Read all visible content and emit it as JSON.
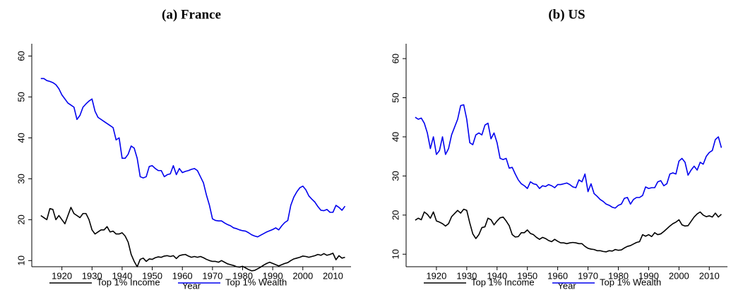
{
  "chart_data": [
    {
      "type": "line",
      "title": "(a) France",
      "xlabel": "Year",
      "x": [
        1913,
        1914,
        1915,
        1916,
        1917,
        1918,
        1919,
        1920,
        1921,
        1922,
        1923,
        1924,
        1925,
        1926,
        1927,
        1928,
        1929,
        1930,
        1931,
        1932,
        1933,
        1934,
        1935,
        1936,
        1937,
        1938,
        1939,
        1940,
        1941,
        1942,
        1943,
        1944,
        1945,
        1946,
        1947,
        1948,
        1949,
        1950,
        1951,
        1952,
        1953,
        1954,
        1955,
        1956,
        1957,
        1958,
        1959,
        1960,
        1961,
        1962,
        1963,
        1964,
        1965,
        1966,
        1967,
        1968,
        1969,
        1970,
        1971,
        1972,
        1973,
        1974,
        1975,
        1976,
        1977,
        1978,
        1979,
        1980,
        1981,
        1982,
        1983,
        1984,
        1985,
        1986,
        1987,
        1988,
        1989,
        1990,
        1991,
        1992,
        1993,
        1994,
        1995,
        1996,
        1997,
        1998,
        1999,
        2000,
        2001,
        2002,
        2003,
        2004,
        2005,
        2006,
        2007,
        2008,
        2009,
        2010,
        2011,
        2012,
        2013,
        2014
      ],
      "series": [
        {
          "name": "Top 1% Income",
          "color": "#000000",
          "values": [
            21,
            20.5,
            20,
            22.7,
            22.5,
            20,
            21,
            20,
            19,
            21,
            23,
            21.5,
            21,
            20.5,
            21.5,
            21.5,
            20,
            17.5,
            16.5,
            17,
            17.5,
            17.5,
            18.3,
            17,
            17.2,
            16.5,
            16.5,
            16.8,
            16,
            14.5,
            11.5,
            9.8,
            8.5,
            10.3,
            10.6,
            9.8,
            10.4,
            10.3,
            10.7,
            10.9,
            10.8,
            11.1,
            11.2,
            11,
            11.2,
            10.5,
            11.2,
            11.4,
            11.5,
            11.1,
            10.8,
            11,
            10.8,
            11,
            10.7,
            10.3,
            10,
            9.8,
            9.8,
            9.6,
            10,
            9.6,
            9.2,
            9,
            8.8,
            8.5,
            8.4,
            8.6,
            8.2,
            7.8,
            7.5,
            7.6,
            8,
            8.4,
            8.9,
            9.3,
            9.6,
            9.3,
            9,
            8.7,
            9,
            9.3,
            9.5,
            10,
            10.4,
            10.6,
            10.8,
            11.1,
            11,
            10.8,
            11,
            11.2,
            11.5,
            11.3,
            11.7,
            11.3,
            11.5,
            11.8,
            10.2,
            11.2,
            10.6,
            10.8
          ]
        },
        {
          "name": "Top 1% Wealth",
          "color": "#0000ee",
          "values": [
            54.5,
            54.5,
            54,
            53.8,
            53.5,
            53,
            52,
            50.5,
            49.5,
            48.5,
            48,
            47.5,
            44.5,
            45.5,
            47.5,
            48.3,
            49,
            49.5,
            46.5,
            45,
            44.5,
            44,
            43.5,
            43,
            42.5,
            39.5,
            40,
            35,
            35,
            36,
            38,
            37.5,
            35,
            30.5,
            30.2,
            30.5,
            33,
            33.2,
            32.5,
            32,
            32,
            30.5,
            31,
            31.2,
            33.2,
            31,
            32.5,
            31.5,
            31.8,
            32,
            32.3,
            32.5,
            32,
            30.5,
            29,
            26,
            23.5,
            20.2,
            19.8,
            19.7,
            19.7,
            19.2,
            18.8,
            18.5,
            18,
            17.8,
            17.5,
            17.3,
            17.2,
            16.8,
            16.3,
            16,
            15.8,
            16.2,
            16.6,
            17,
            17.3,
            17.6,
            18,
            17.5,
            18.5,
            19.3,
            19.8,
            23.5,
            25.5,
            26.8,
            27.8,
            28.2,
            27.3,
            25.8,
            25,
            24.3,
            23.2,
            22.3,
            22.2,
            22.5,
            21.8,
            21.8,
            23.5,
            23,
            22.3,
            23.3
          ]
        }
      ],
      "xlim": [
        1910,
        2016
      ],
      "ylim": [
        8.5,
        63
      ],
      "xticks": [
        1920,
        1930,
        1940,
        1950,
        1960,
        1970,
        1980,
        1990,
        2000,
        2010
      ],
      "yticks": [
        10,
        20,
        30,
        40,
        50,
        60
      ],
      "grid": false,
      "legend": "bottom"
    },
    {
      "type": "line",
      "title": "(b) US",
      "xlabel": "Year",
      "x": [
        1913,
        1914,
        1915,
        1916,
        1917,
        1918,
        1919,
        1920,
        1921,
        1922,
        1923,
        1924,
        1925,
        1926,
        1927,
        1928,
        1929,
        1930,
        1931,
        1932,
        1933,
        1934,
        1935,
        1936,
        1937,
        1938,
        1939,
        1940,
        1941,
        1942,
        1943,
        1944,
        1945,
        1946,
        1947,
        1948,
        1949,
        1950,
        1951,
        1952,
        1953,
        1954,
        1955,
        1956,
        1957,
        1958,
        1959,
        1960,
        1961,
        1962,
        1963,
        1964,
        1965,
        1966,
        1967,
        1968,
        1969,
        1970,
        1971,
        1972,
        1973,
        1974,
        1975,
        1976,
        1977,
        1978,
        1979,
        1980,
        1981,
        1982,
        1983,
        1984,
        1985,
        1986,
        1987,
        1988,
        1989,
        1990,
        1991,
        1992,
        1993,
        1994,
        1995,
        1996,
        1997,
        1998,
        1999,
        2000,
        2001,
        2002,
        2003,
        2004,
        2005,
        2006,
        2007,
        2008,
        2009,
        2010,
        2011,
        2012,
        2013,
        2014
      ],
      "series": [
        {
          "name": "Top 1% Income",
          "color": "#000000",
          "values": [
            18.7,
            19.2,
            18.8,
            20.8,
            20.2,
            19.2,
            20.8,
            18.5,
            18.2,
            17.8,
            17.2,
            17.8,
            19.6,
            20.4,
            21.2,
            20.5,
            21.5,
            21.2,
            18,
            15.2,
            14,
            15,
            16.8,
            17,
            19.2,
            18.8,
            17.5,
            18.5,
            19.3,
            19.5,
            18.5,
            17.3,
            15,
            14.4,
            14.5,
            15.5,
            15.5,
            16.2,
            15.3,
            15,
            14.3,
            13.8,
            14.3,
            14,
            13.5,
            13.2,
            13.8,
            13.3,
            12.9,
            12.9,
            12.7,
            12.9,
            13,
            12.9,
            12.7,
            12.7,
            12,
            11.5,
            11.3,
            11.2,
            10.9,
            10.9,
            10.7,
            10.6,
            10.9,
            10.8,
            11.2,
            11,
            11.1,
            11.6,
            12,
            12.2,
            12.6,
            13,
            13.2,
            15,
            14.6,
            15,
            14.5,
            15.5,
            15,
            15.2,
            15.8,
            16.5,
            17.2,
            17.8,
            18.2,
            18.8,
            17.5,
            17.2,
            17.3,
            18.4,
            19.5,
            20.3,
            20.8,
            20,
            19.6,
            19.8,
            19.5,
            20.5,
            19.5,
            20.2
          ]
        },
        {
          "name": "Top 1% Wealth",
          "color": "#0000ee",
          "values": [
            45,
            44.5,
            44.8,
            43.5,
            41,
            37,
            40,
            35.5,
            36.5,
            40,
            35.5,
            37,
            40.5,
            42.5,
            44.5,
            48,
            48.2,
            44.5,
            38.5,
            38,
            40.5,
            41,
            40.5,
            43,
            43.5,
            39.5,
            41,
            38.5,
            34.5,
            34.2,
            34.5,
            32,
            32.2,
            30.5,
            29,
            28,
            27.5,
            26.8,
            28.5,
            28,
            27.8,
            26.8,
            27.5,
            27.3,
            27.8,
            27.5,
            27,
            27.8,
            27.8,
            28,
            28.2,
            27.8,
            27.2,
            27,
            29,
            28.5,
            30.5,
            26,
            28,
            25.5,
            24.8,
            24,
            23.5,
            22.8,
            22.5,
            22,
            21.8,
            22.5,
            22.8,
            24.3,
            24.5,
            22.8,
            24,
            24.5,
            24.5,
            25,
            27.2,
            26.8,
            27,
            27,
            28.5,
            28.8,
            27.5,
            28,
            30.5,
            30.8,
            30.5,
            33.8,
            34.5,
            33.5,
            30.2,
            31.5,
            32.5,
            31.5,
            33.5,
            33,
            35,
            36,
            36.5,
            39.3,
            40,
            37.2
          ]
        }
      ],
      "xlim": [
        1910,
        2016
      ],
      "ylim": [
        6.8,
        63.8
      ],
      "xticks": [
        1920,
        1930,
        1940,
        1950,
        1960,
        1970,
        1980,
        1990,
        2000,
        2010
      ],
      "yticks": [
        10,
        20,
        30,
        40,
        50,
        60
      ],
      "grid": false,
      "legend": "bottom"
    }
  ]
}
